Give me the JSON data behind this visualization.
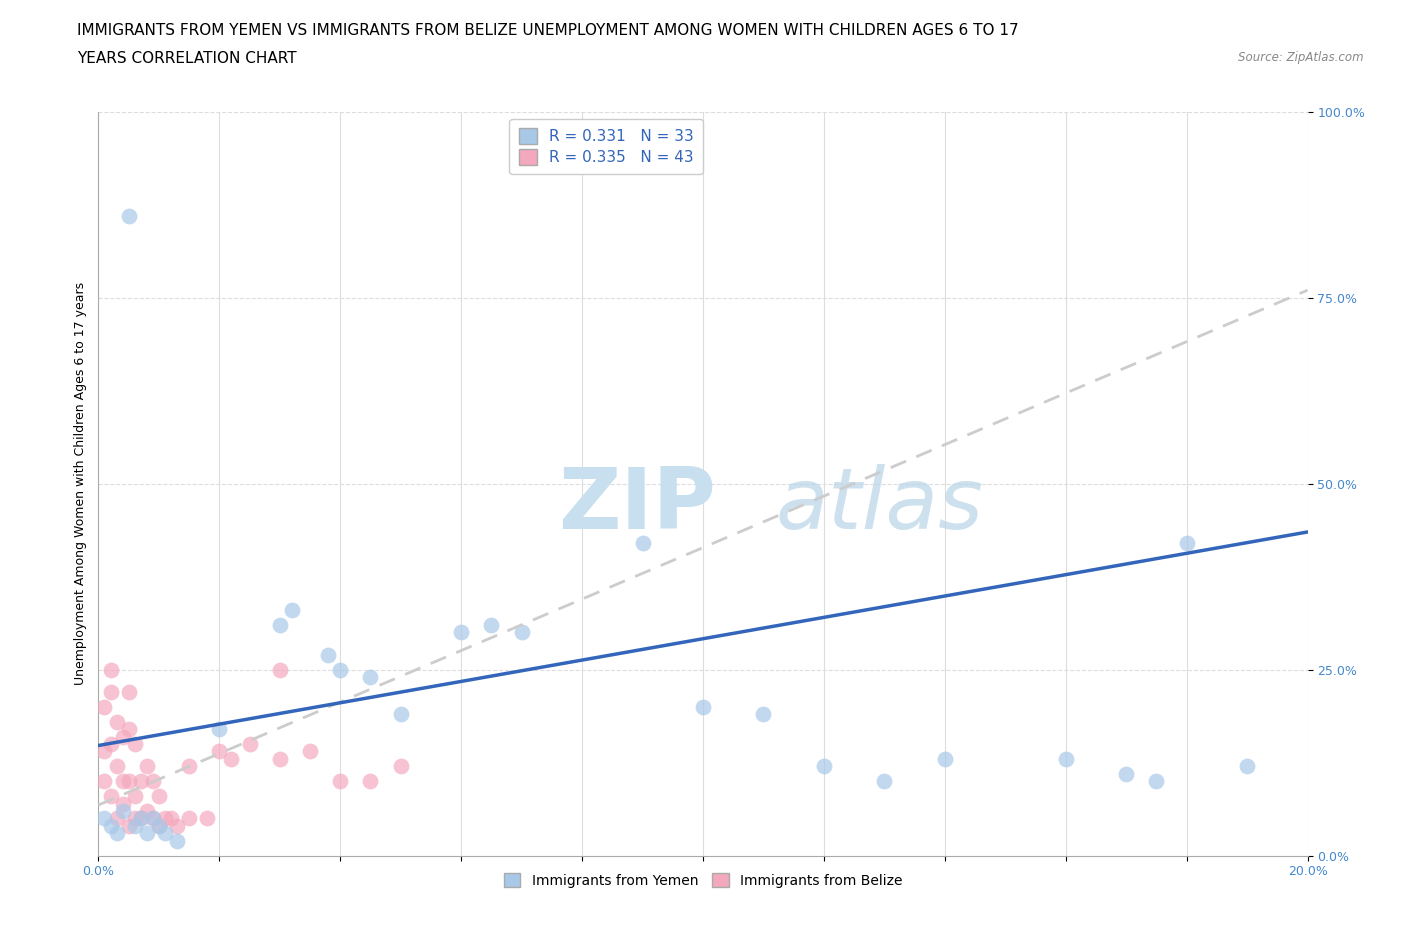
{
  "title_line1": "IMMIGRANTS FROM YEMEN VS IMMIGRANTS FROM BELIZE UNEMPLOYMENT AMONG WOMEN WITH CHILDREN AGES 6 TO 17",
  "title_line2": "YEARS CORRELATION CHART",
  "source_text": "Source: ZipAtlas.com",
  "ylabel": "Unemployment Among Women with Children Ages 6 to 17 years",
  "xlim": [
    0.0,
    0.2
  ],
  "ylim": [
    0.0,
    1.0
  ],
  "xticks": [
    0.0,
    0.02,
    0.04,
    0.06,
    0.08,
    0.1,
    0.12,
    0.14,
    0.16,
    0.18,
    0.2
  ],
  "yticks": [
    0.0,
    0.25,
    0.5,
    0.75,
    1.0
  ],
  "ytick_labels": [
    "0.0%",
    "25.0%",
    "50.0%",
    "75.0%",
    "100.0%"
  ],
  "xtick_labels": [
    "0.0%",
    "",
    "",
    "",
    "",
    "",
    "",
    "",
    "",
    "",
    "20.0%"
  ],
  "yemen_R": 0.331,
  "yemen_N": 33,
  "belize_R": 0.335,
  "belize_N": 43,
  "yemen_color": "#a8c8e8",
  "belize_color": "#f4a8be",
  "yemen_line_color": "#3366bb",
  "belize_line_color": "#cccccc",
  "background_color": "#ffffff",
  "watermark_zip": "ZIP",
  "watermark_atlas": "atlas",
  "watermark_color": "#c8dff0",
  "yemen_x": [
    0.001,
    0.002,
    0.003,
    0.004,
    0.005,
    0.006,
    0.007,
    0.008,
    0.009,
    0.01,
    0.011,
    0.013,
    0.02,
    0.03,
    0.032,
    0.038,
    0.04,
    0.045,
    0.05,
    0.06,
    0.065,
    0.07,
    0.09,
    0.1,
    0.11,
    0.12,
    0.13,
    0.14,
    0.16,
    0.17,
    0.175,
    0.18,
    0.19
  ],
  "yemen_y": [
    0.05,
    0.04,
    0.03,
    0.06,
    0.86,
    0.04,
    0.05,
    0.03,
    0.05,
    0.04,
    0.03,
    0.02,
    0.17,
    0.31,
    0.33,
    0.27,
    0.25,
    0.24,
    0.19,
    0.3,
    0.31,
    0.3,
    0.42,
    0.2,
    0.19,
    0.12,
    0.1,
    0.13,
    0.13,
    0.11,
    0.1,
    0.42,
    0.12
  ],
  "belize_x": [
    0.001,
    0.001,
    0.001,
    0.002,
    0.002,
    0.002,
    0.002,
    0.003,
    0.003,
    0.003,
    0.004,
    0.004,
    0.004,
    0.005,
    0.005,
    0.005,
    0.005,
    0.006,
    0.006,
    0.006,
    0.007,
    0.007,
    0.008,
    0.008,
    0.009,
    0.009,
    0.01,
    0.01,
    0.011,
    0.012,
    0.013,
    0.015,
    0.015,
    0.018,
    0.02,
    0.022,
    0.025,
    0.03,
    0.03,
    0.035,
    0.04,
    0.045,
    0.05
  ],
  "belize_y": [
    0.1,
    0.14,
    0.2,
    0.08,
    0.15,
    0.22,
    0.25,
    0.05,
    0.12,
    0.18,
    0.07,
    0.1,
    0.16,
    0.04,
    0.1,
    0.17,
    0.22,
    0.05,
    0.08,
    0.15,
    0.05,
    0.1,
    0.06,
    0.12,
    0.05,
    0.1,
    0.04,
    0.08,
    0.05,
    0.05,
    0.04,
    0.05,
    0.12,
    0.05,
    0.14,
    0.13,
    0.15,
    0.13,
    0.25,
    0.14,
    0.1,
    0.1,
    0.12
  ],
  "yemen_line_x0": 0.0,
  "yemen_line_y0": 0.148,
  "yemen_line_x1": 0.2,
  "yemen_line_y1": 0.435,
  "belize_line_x0": 0.0,
  "belize_line_y0": 0.068,
  "belize_line_x1": 0.2,
  "belize_line_y1": 0.76,
  "title_fontsize": 11,
  "axis_label_fontsize": 9,
  "tick_fontsize": 9,
  "legend_fontsize": 11
}
